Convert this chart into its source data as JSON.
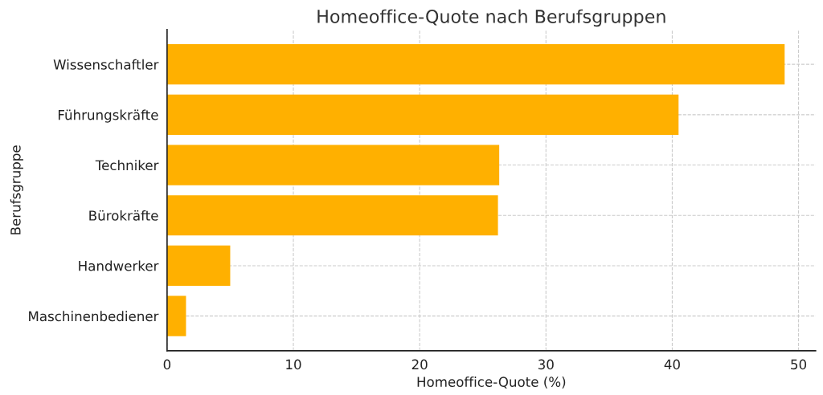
{
  "chart_data": {
    "type": "bar",
    "orientation": "horizontal",
    "title": "Homeoffice-Quote nach Berufsgruppen",
    "xlabel": "Homeoffice-Quote (%)",
    "ylabel": "Berufsgruppe",
    "categories": [
      "Wissenschaftler",
      "Führungskräfte",
      "Techniker",
      "Bürokräfte",
      "Handwerker",
      "Maschinenbediener"
    ],
    "values": [
      48.9,
      40.5,
      26.3,
      26.2,
      5.0,
      1.5
    ],
    "color": "#ffb000",
    "xlim": [
      0,
      51.35
    ],
    "xticks": [
      0,
      10,
      20,
      30,
      40,
      50
    ],
    "grid": true
  }
}
